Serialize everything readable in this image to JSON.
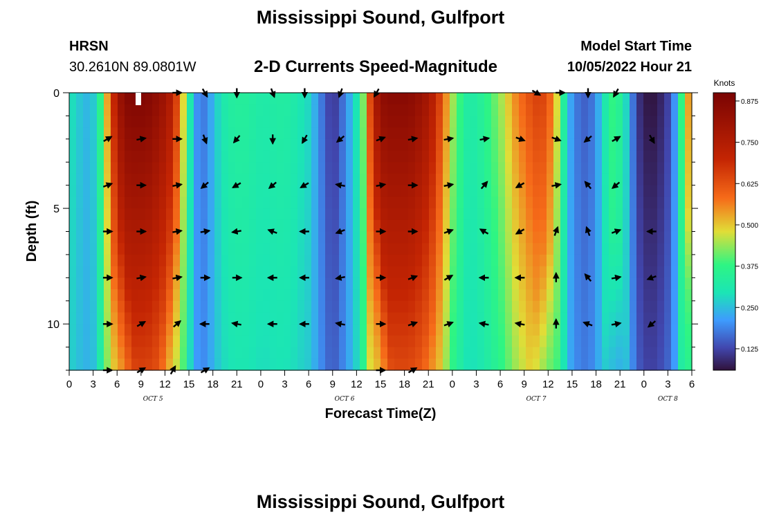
{
  "page": {
    "title": "Mississippi Sound, Gulfport",
    "footer_title": "Mississippi Sound, Gulfport"
  },
  "station": {
    "id": "HRSN",
    "coords": "30.2610N  89.0801W"
  },
  "model_start": {
    "label": "Model Start Time",
    "value": "10/05/2022 Hour 21"
  },
  "chart_data": {
    "type": "heatmap",
    "title": "2-D Currents Speed-Magnitude",
    "xlabel": "Forecast Time(Z)",
    "ylabel": "Depth (ft)",
    "x_range_hours": [
      0,
      78
    ],
    "ylim": [
      0,
      12
    ],
    "y_ticks": [
      0,
      5,
      10
    ],
    "x_tick_labels": [
      "0",
      "3",
      "6",
      "9",
      "12",
      "15",
      "18",
      "21",
      "0",
      "3",
      "6",
      "9",
      "12",
      "15",
      "18",
      "21",
      "0",
      "3",
      "6",
      "9",
      "12",
      "15",
      "18",
      "21",
      "0",
      "3",
      "6"
    ],
    "day_labels": [
      {
        "hour": 10.5,
        "label": "OCT 5"
      },
      {
        "hour": 34.5,
        "label": "OCT 6"
      },
      {
        "hour": 58.5,
        "label": "OCT 7"
      },
      {
        "hour": 75,
        "label": "OCT 8"
      }
    ],
    "colorbar": {
      "unit": "Knots",
      "min": 0.06,
      "max": 0.9,
      "ticks": [
        "0.875",
        "0.750",
        "0.625",
        "0.500",
        "0.375",
        "0.250",
        "0.125"
      ],
      "tick_values": [
        0.875,
        0.75,
        0.625,
        0.5,
        0.375,
        0.25,
        0.125
      ]
    },
    "speed_profile": {
      "hours": [
        0,
        1,
        2,
        3,
        4,
        5,
        6,
        7,
        8,
        9,
        10,
        11,
        12,
        13,
        14,
        15,
        16,
        17,
        18,
        19,
        20,
        21,
        22,
        23,
        24,
        25,
        26,
        27,
        28,
        29,
        30,
        31,
        32,
        33,
        34,
        35,
        36,
        37,
        38,
        39,
        40,
        41,
        42,
        43,
        44,
        45,
        46,
        47,
        48,
        49,
        50,
        51,
        52,
        53,
        54,
        55,
        56,
        57,
        58,
        59,
        60,
        61,
        62,
        63,
        64,
        65,
        66,
        67,
        68,
        69,
        70,
        71,
        72,
        73,
        74,
        75,
        76,
        77,
        78
      ],
      "surface": [
        0.3,
        0.27,
        0.24,
        0.26,
        0.38,
        0.58,
        0.78,
        0.87,
        0.88,
        0.88,
        0.87,
        0.84,
        0.8,
        0.73,
        0.55,
        0.33,
        0.2,
        0.18,
        0.24,
        0.3,
        0.33,
        0.34,
        0.34,
        0.33,
        0.32,
        0.32,
        0.33,
        0.33,
        0.32,
        0.3,
        0.28,
        0.22,
        0.15,
        0.1,
        0.15,
        0.22,
        0.3,
        0.45,
        0.72,
        0.84,
        0.86,
        0.86,
        0.86,
        0.85,
        0.82,
        0.78,
        0.7,
        0.58,
        0.45,
        0.38,
        0.32,
        0.33,
        0.36,
        0.4,
        0.44,
        0.5,
        0.56,
        0.6,
        0.64,
        0.66,
        0.62,
        0.5,
        0.33,
        0.2,
        0.16,
        0.15,
        0.2,
        0.3,
        0.38,
        0.35,
        0.26,
        0.12,
        0.07,
        0.06,
        0.08,
        0.12,
        0.22,
        0.45,
        0.6
      ],
      "half_width_hours": [
        2.5,
        2.5,
        2.5,
        2.5,
        2.5,
        2.5,
        2.5,
        3.5,
        4.5,
        5,
        5,
        5,
        5,
        5,
        5,
        5,
        5,
        5,
        5,
        5,
        5,
        5,
        5,
        5,
        5,
        5,
        5,
        5,
        5,
        5,
        5,
        5,
        5,
        5,
        5,
        5,
        5,
        5,
        3.5,
        4.5,
        5,
        5,
        5,
        5,
        5,
        5,
        5,
        5,
        5,
        5,
        5,
        5,
        5,
        5,
        5,
        5,
        5,
        5,
        5,
        5,
        5,
        5,
        5,
        5,
        5,
        5,
        5,
        5,
        5,
        5,
        5,
        5,
        5,
        5,
        5,
        5,
        5,
        5,
        5
      ]
    },
    "current_vectors": [
      {
        "hour": 13.5,
        "depth": 0,
        "dir_deg": 90
      },
      {
        "hour": 17,
        "depth": 0,
        "dir_deg": 150
      },
      {
        "hour": 21,
        "depth": 0,
        "dir_deg": 180
      },
      {
        "hour": 25.5,
        "depth": 0,
        "dir_deg": 160
      },
      {
        "hour": 29.5,
        "depth": 0,
        "dir_deg": 180
      },
      {
        "hour": 34,
        "depth": 0,
        "dir_deg": 200
      },
      {
        "hour": 38.5,
        "depth": 0,
        "dir_deg": 210
      },
      {
        "hour": 58.5,
        "depth": 0,
        "dir_deg": 120
      },
      {
        "hour": 61.5,
        "depth": 0,
        "dir_deg": 90
      },
      {
        "hour": 65,
        "depth": 0,
        "dir_deg": 180
      },
      {
        "hour": 68.5,
        "depth": 0,
        "dir_deg": 210
      },
      {
        "hour": 4.8,
        "depth": 2,
        "dir_deg": 60
      },
      {
        "hour": 9,
        "depth": 2,
        "dir_deg": 80
      },
      {
        "hour": 13.5,
        "depth": 2,
        "dir_deg": 90
      },
      {
        "hour": 17,
        "depth": 2,
        "dir_deg": 160
      },
      {
        "hour": 21,
        "depth": 2,
        "dir_deg": 220
      },
      {
        "hour": 25.5,
        "depth": 2,
        "dir_deg": 180
      },
      {
        "hour": 29.5,
        "depth": 2,
        "dir_deg": 210
      },
      {
        "hour": 34,
        "depth": 2,
        "dir_deg": 230
      },
      {
        "hour": 39,
        "depth": 2,
        "dir_deg": 70
      },
      {
        "hour": 43,
        "depth": 2,
        "dir_deg": 80
      },
      {
        "hour": 47.5,
        "depth": 2,
        "dir_deg": 80
      },
      {
        "hour": 52,
        "depth": 2,
        "dir_deg": 80
      },
      {
        "hour": 56.5,
        "depth": 2,
        "dir_deg": 110
      },
      {
        "hour": 61,
        "depth": 2,
        "dir_deg": 110
      },
      {
        "hour": 65,
        "depth": 2,
        "dir_deg": 230
      },
      {
        "hour": 68.5,
        "depth": 2,
        "dir_deg": 60
      },
      {
        "hour": 73,
        "depth": 2,
        "dir_deg": 150
      },
      {
        "hour": 4.8,
        "depth": 4,
        "dir_deg": 70
      },
      {
        "hour": 9,
        "depth": 4,
        "dir_deg": 90
      },
      {
        "hour": 13.5,
        "depth": 4,
        "dir_deg": 80
      },
      {
        "hour": 17,
        "depth": 4,
        "dir_deg": 230
      },
      {
        "hour": 21,
        "depth": 4,
        "dir_deg": 240
      },
      {
        "hour": 25.5,
        "depth": 4,
        "dir_deg": 230
      },
      {
        "hour": 29.5,
        "depth": 4,
        "dir_deg": 240
      },
      {
        "hour": 34,
        "depth": 4,
        "dir_deg": 280
      },
      {
        "hour": 39,
        "depth": 4,
        "dir_deg": 80
      },
      {
        "hour": 43,
        "depth": 4,
        "dir_deg": 90
      },
      {
        "hour": 47.5,
        "depth": 4,
        "dir_deg": 80
      },
      {
        "hour": 52,
        "depth": 4,
        "dir_deg": 40
      },
      {
        "hour": 56.5,
        "depth": 4,
        "dir_deg": 240
      },
      {
        "hour": 61,
        "depth": 4,
        "dir_deg": 80
      },
      {
        "hour": 65,
        "depth": 4,
        "dir_deg": 320
      },
      {
        "hour": 68.5,
        "depth": 4,
        "dir_deg": 230
      },
      {
        "hour": 4.8,
        "depth": 6,
        "dir_deg": 90
      },
      {
        "hour": 9,
        "depth": 6,
        "dir_deg": 90
      },
      {
        "hour": 13.5,
        "depth": 6,
        "dir_deg": 80
      },
      {
        "hour": 17,
        "depth": 6,
        "dir_deg": 80
      },
      {
        "hour": 21,
        "depth": 6,
        "dir_deg": 260
      },
      {
        "hour": 25.5,
        "depth": 6,
        "dir_deg": 290
      },
      {
        "hour": 29.5,
        "depth": 6,
        "dir_deg": 270
      },
      {
        "hour": 34,
        "depth": 6,
        "dir_deg": 250
      },
      {
        "hour": 39,
        "depth": 6,
        "dir_deg": 90
      },
      {
        "hour": 43,
        "depth": 6,
        "dir_deg": 90
      },
      {
        "hour": 47.5,
        "depth": 6,
        "dir_deg": 70
      },
      {
        "hour": 52,
        "depth": 6,
        "dir_deg": 300
      },
      {
        "hour": 56.5,
        "depth": 6,
        "dir_deg": 240
      },
      {
        "hour": 61,
        "depth": 6,
        "dir_deg": 20
      },
      {
        "hour": 65,
        "depth": 6,
        "dir_deg": 340
      },
      {
        "hour": 68.5,
        "depth": 6,
        "dir_deg": 70
      },
      {
        "hour": 73,
        "depth": 6,
        "dir_deg": 270
      },
      {
        "hour": 4.8,
        "depth": 8,
        "dir_deg": 90
      },
      {
        "hour": 9,
        "depth": 8,
        "dir_deg": 80
      },
      {
        "hour": 13.5,
        "depth": 8,
        "dir_deg": 80
      },
      {
        "hour": 17,
        "depth": 8,
        "dir_deg": 90
      },
      {
        "hour": 21,
        "depth": 8,
        "dir_deg": 90
      },
      {
        "hour": 25.5,
        "depth": 8,
        "dir_deg": 270
      },
      {
        "hour": 29.5,
        "depth": 8,
        "dir_deg": 270
      },
      {
        "hour": 34,
        "depth": 8,
        "dir_deg": 260
      },
      {
        "hour": 39,
        "depth": 8,
        "dir_deg": 90
      },
      {
        "hour": 43,
        "depth": 8,
        "dir_deg": 70
      },
      {
        "hour": 47.5,
        "depth": 8,
        "dir_deg": 60
      },
      {
        "hour": 52,
        "depth": 8,
        "dir_deg": 270
      },
      {
        "hour": 56.5,
        "depth": 8,
        "dir_deg": 270
      },
      {
        "hour": 61,
        "depth": 8,
        "dir_deg": 0
      },
      {
        "hour": 65,
        "depth": 8,
        "dir_deg": 320
      },
      {
        "hour": 68.5,
        "depth": 8,
        "dir_deg": 80
      },
      {
        "hour": 73,
        "depth": 8,
        "dir_deg": 250
      },
      {
        "hour": 4.8,
        "depth": 10,
        "dir_deg": 90
      },
      {
        "hour": 9,
        "depth": 10,
        "dir_deg": 60
      },
      {
        "hour": 13.5,
        "depth": 10,
        "dir_deg": 50
      },
      {
        "hour": 17,
        "depth": 10,
        "dir_deg": 270
      },
      {
        "hour": 21,
        "depth": 10,
        "dir_deg": 280
      },
      {
        "hour": 25.5,
        "depth": 10,
        "dir_deg": 270
      },
      {
        "hour": 29.5,
        "depth": 10,
        "dir_deg": 270
      },
      {
        "hour": 34,
        "depth": 10,
        "dir_deg": 280
      },
      {
        "hour": 39,
        "depth": 10,
        "dir_deg": 90
      },
      {
        "hour": 43,
        "depth": 10,
        "dir_deg": 70
      },
      {
        "hour": 47.5,
        "depth": 10,
        "dir_deg": 70
      },
      {
        "hour": 52,
        "depth": 10,
        "dir_deg": 280
      },
      {
        "hour": 56.5,
        "depth": 10,
        "dir_deg": 280
      },
      {
        "hour": 61,
        "depth": 10,
        "dir_deg": 0
      },
      {
        "hour": 65,
        "depth": 10,
        "dir_deg": 290
      },
      {
        "hour": 68.5,
        "depth": 10,
        "dir_deg": 80
      },
      {
        "hour": 73,
        "depth": 10,
        "dir_deg": 230
      },
      {
        "hour": 4.8,
        "depth": 12,
        "dir_deg": 90
      },
      {
        "hour": 9,
        "depth": 12,
        "dir_deg": 60
      },
      {
        "hour": 13,
        "depth": 12,
        "dir_deg": 30
      },
      {
        "hour": 17,
        "depth": 12,
        "dir_deg": 60
      },
      {
        "hour": 39,
        "depth": 12,
        "dir_deg": 90
      },
      {
        "hour": 43,
        "depth": 12,
        "dir_deg": 60
      }
    ],
    "colors": {
      "deep_red": "#7a0403",
      "red": "#c42503",
      "orange": "#f66b19",
      "yellow": "#e1dd37",
      "green": "#2ef583",
      "cyan": "#1be5b5",
      "blue": "#3e9bfe",
      "indigo": "#4146ad",
      "dark_purple": "#30123b",
      "axis": "#000000",
      "marker": "#ffffff"
    }
  }
}
